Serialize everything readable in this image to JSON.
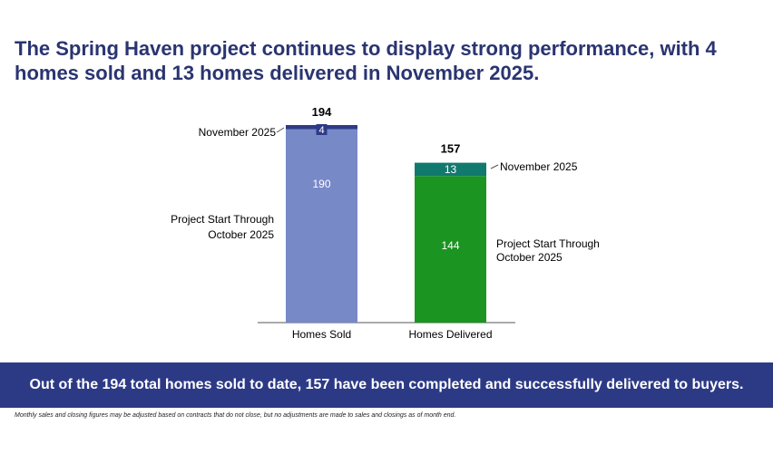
{
  "headline": "The Spring Haven project continues to display strong performance, with 4 homes sold and 13 homes delivered in November 2025.",
  "banner": "Out of the 194 total homes sold to date, 157 have been completed and successfully delivered to buyers.",
  "footnote": "Monthly sales and closing figures may be adjusted based on contracts that do not close, but no adjustments are made to sales and closings as of month end.",
  "colors": {
    "headline": "#2a3471",
    "sold_base": "#7889c8",
    "sold_recent": "#2e3a87",
    "delivered_base": "#1b9422",
    "delivered_recent": "#12796f",
    "banner": "#2c3a86"
  },
  "chart_data": {
    "type": "bar",
    "stacked": true,
    "categories": [
      "Homes Sold",
      "Homes Delivered"
    ],
    "series": [
      {
        "name": "Project Start Through October 2025",
        "values": [
          190,
          144
        ]
      },
      {
        "name": "November 2025",
        "values": [
          4,
          13
        ]
      }
    ],
    "totals": [
      194,
      157
    ],
    "segment_labels": {
      "base_label": "Project Start Through October 2025",
      "recent_label": "November 2025"
    },
    "ylim": [
      0,
      194
    ],
    "grid": false,
    "legend": "none"
  }
}
